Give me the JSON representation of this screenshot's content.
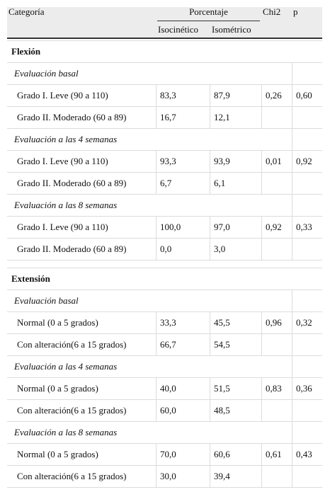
{
  "header": {
    "category": "Categoría",
    "percentage": "Porcentaje",
    "chi2": "Chi2",
    "p": "p",
    "isokinetic": "Isocinético",
    "isometric": "Isométrico"
  },
  "sections": [
    {
      "title": "Flexión",
      "groups": [
        {
          "title": "Evaluación basal",
          "rows": [
            [
              "Grado I. Leve (90 a 110)",
              "83,3",
              "87,9",
              "0,26",
              "0,60"
            ],
            [
              "Grado II. Moderado (60 a 89)",
              "16,7",
              "12,1"
            ]
          ]
        },
        {
          "title": "Evaluación a las 4 semanas",
          "rows": [
            [
              "Grado I. Leve (90 a 110)",
              "93,3",
              "93,9",
              "0,01",
              "0,92"
            ],
            [
              "Grado II. Moderado (60 a 89)",
              "6,7",
              "6,1"
            ]
          ]
        },
        {
          "title": "Evaluación a las 8 semanas",
          "rows": [
            [
              "Grado I. Leve (90 a 110)",
              "100,0",
              "97,0",
              "0,92",
              "0,33"
            ],
            [
              "Grado II. Moderado (60 a 89)",
              "0,0",
              "3,0"
            ]
          ]
        }
      ]
    },
    {
      "title": "Extensión",
      "groups": [
        {
          "title": "Evaluación basal",
          "rows": [
            [
              "Normal (0 a 5 grados)",
              "33,3",
              "45,5",
              "0,96",
              "0,32"
            ],
            [
              "Con alteración(6 a 15 grados)",
              "66,7",
              "54,5"
            ]
          ]
        },
        {
          "title": "Evaluación a las 4 semanas",
          "rows": [
            [
              "Normal (0 a 5 grados)",
              "40,0",
              "51,5",
              "0,83",
              "0,36"
            ],
            [
              "Con alteración(6 a 15 grados)",
              "60,0",
              "48,5"
            ]
          ]
        },
        {
          "title": "Evaluación a las 8 semanas",
          "rows": [
            [
              "Normal (0 a 5 grados)",
              "70,0",
              "60,6",
              "0,61",
              "0,43"
            ],
            [
              "Con alteración(6 a 15 grados)",
              "30,0",
              "39,4"
            ]
          ]
        }
      ]
    }
  ]
}
